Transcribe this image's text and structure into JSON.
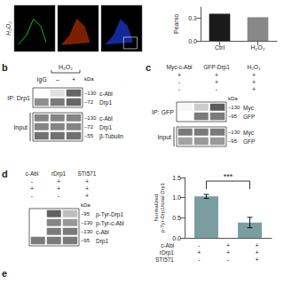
{
  "chart_data": [
    {
      "type": "image",
      "ylabel": "H₂O₂",
      "colors": [
        "#00cc00",
        "#cc3300",
        "#2244ff"
      ]
    },
    {
      "type": "bar",
      "categories": [
        "Ctrl",
        "H₂O₂"
      ],
      "values": [
        0.12,
        0.105
      ],
      "colors": [
        "#1a1a1a",
        "#888888"
      ],
      "ylabel": "Pearso",
      "ylim": [
        0.0,
        0.15
      ],
      "yticks": [
        {
          "value": 0.0,
          "label": "0.0"
        },
        {
          "value": 0.1,
          "label": "0.1"
        }
      ],
      "grid": false
    },
    {
      "type": "heatmap",
      "title": "b",
      "header": "H₂O₂",
      "lanes": [
        "IgG",
        "–",
        "+"
      ],
      "unit": "kDa",
      "intensity_range": [
        0,
        1
      ],
      "groups": [
        {
          "name": "IP: Drp1",
          "rows": [
            {
              "label": "c-Abl",
              "kda": "–130",
              "values": [
                0.0,
                0.15,
                0.75
              ]
            },
            {
              "label": "Drp1",
              "kda": "–72",
              "values": [
                0.55,
                0.65,
                0.75
              ]
            }
          ]
        },
        {
          "name": "Input",
          "rows": [
            {
              "label": "c-Abl",
              "kda": "–130",
              "values": [
                0.6,
                0.6,
                0.6
              ]
            },
            {
              "label": "Drp1",
              "kda": "–72",
              "values": [
                0.6,
                0.6,
                0.6
              ]
            },
            {
              "label": "β-Tubulin",
              "kda": "–55",
              "values": [
                0.7,
                0.7,
                0.7
              ]
            }
          ]
        }
      ]
    },
    {
      "type": "heatmap",
      "title": "c",
      "label_names": [
        "Myc-c-Abl",
        "GFP-Drp1",
        "H₂O₂"
      ],
      "label_vals": [
        [
          "+",
          "+",
          "+"
        ],
        [
          "-",
          "+",
          "+"
        ],
        [
          "-",
          "-",
          "+"
        ]
      ],
      "unit": "kDa",
      "intensity_range": [
        0,
        1
      ],
      "groups": [
        {
          "name": "IP: GFP",
          "rows": [
            {
              "label": "Myc",
              "kda": "–130",
              "values": [
                0.05,
                0.25,
                0.8
              ]
            },
            {
              "label": "GFP",
              "kda": "–95",
              "values": [
                0.0,
                0.65,
                0.65
              ]
            }
          ]
        },
        {
          "name": "Input",
          "rows": [
            {
              "label": "Myc",
              "kda": "–130",
              "values": [
                0.65,
                0.65,
                0.65
              ]
            },
            {
              "label": "GFP",
              "kda": "–95",
              "values": [
                0.45,
                0.5,
                0.5
              ]
            }
          ]
        }
      ]
    },
    {
      "type": "heatmap",
      "title": "d",
      "label_names": [
        "c-Abl",
        "rDrp1",
        "STI571"
      ],
      "label_vals": [
        [
          "-",
          "+",
          "+"
        ],
        [
          "+",
          "+",
          "+"
        ],
        [
          "-",
          "-",
          "+"
        ]
      ],
      "unit": "kDa",
      "intensity_range": [
        0,
        1
      ],
      "groups": [
        {
          "rows": [
            {
              "label": "p-Tyr-Drp1",
              "kda": "–95",
              "values": [
                0.0,
                0.78,
                0.32
              ]
            },
            {
              "label": "p-Tyr-c-Abl",
              "kda": "–130",
              "values": [
                0.0,
                0.6,
                0.5
              ]
            },
            {
              "label": "c-Abl",
              "kda": "–130",
              "values": [
                0.0,
                0.65,
                0.65
              ]
            },
            {
              "label": "Drp1",
              "kda": "–95",
              "values": [
                0.65,
                0.65,
                0.65
              ]
            }
          ]
        }
      ]
    },
    {
      "type": "bar",
      "values": [
        1.03,
        0.38
      ],
      "error_bars": [
        0.05,
        0.13
      ],
      "color": "#7a9e9f",
      "ylabel": "Normalized\np-Tyr-Drp1/total Drp1",
      "ylim": [
        0.0,
        1.5
      ],
      "yticks": [
        {
          "value": 0.0,
          "label": "0.0"
        },
        {
          "value": 0.5,
          "label": "0.5"
        },
        {
          "value": 1.0,
          "label": "1.0"
        },
        {
          "value": 1.5,
          "label": "1.5"
        }
      ],
      "annotations": [
        "***"
      ],
      "label_names": [
        "c-Abl",
        "rDrp1",
        "STI571"
      ],
      "label_vals": [
        [
          "-",
          "+",
          "+"
        ],
        [
          "+",
          "+",
          "+"
        ],
        [
          "-",
          "-",
          "+"
        ]
      ],
      "tick_labels": "y",
      "grid": false
    },
    {
      "type": "text",
      "title": "e"
    }
  ]
}
